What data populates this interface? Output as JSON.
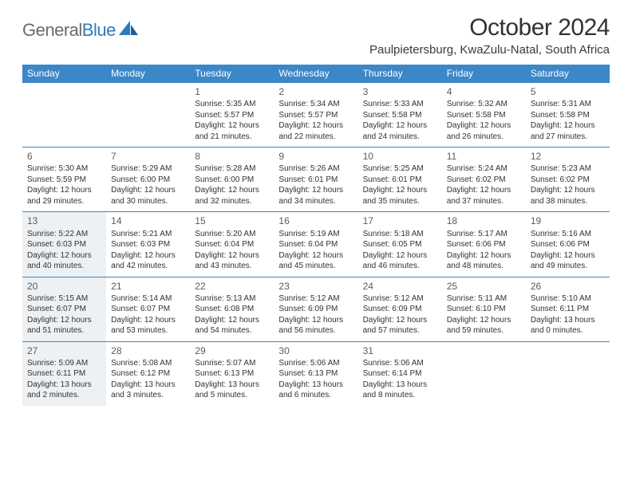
{
  "brand": {
    "name_gray": "General",
    "name_blue": "Blue"
  },
  "title": "October 2024",
  "location": "Paulpietersburg, KwaZulu-Natal, South Africa",
  "colors": {
    "header_bg": "#3b87c8",
    "header_fg": "#ffffff",
    "rule": "#3b87c8",
    "shade_bg": "#eef1f3",
    "text": "#323232",
    "logo_gray": "#6b6b6b",
    "logo_blue": "#2f7bbf"
  },
  "typography": {
    "title_fontsize_pt": 22,
    "location_fontsize_pt": 11,
    "dow_fontsize_pt": 9,
    "daynum_fontsize_pt": 9,
    "info_fontsize_pt": 7.5
  },
  "days_of_week": [
    "Sunday",
    "Monday",
    "Tuesday",
    "Wednesday",
    "Thursday",
    "Friday",
    "Saturday"
  ],
  "weeks": [
    [
      null,
      null,
      {
        "n": "1",
        "sr": "5:35 AM",
        "ss": "5:57 PM",
        "dl": "12 hours and 21 minutes."
      },
      {
        "n": "2",
        "sr": "5:34 AM",
        "ss": "5:57 PM",
        "dl": "12 hours and 22 minutes."
      },
      {
        "n": "3",
        "sr": "5:33 AM",
        "ss": "5:58 PM",
        "dl": "12 hours and 24 minutes."
      },
      {
        "n": "4",
        "sr": "5:32 AM",
        "ss": "5:58 PM",
        "dl": "12 hours and 26 minutes."
      },
      {
        "n": "5",
        "sr": "5:31 AM",
        "ss": "5:58 PM",
        "dl": "12 hours and 27 minutes."
      }
    ],
    [
      {
        "n": "6",
        "sr": "5:30 AM",
        "ss": "5:59 PM",
        "dl": "12 hours and 29 minutes."
      },
      {
        "n": "7",
        "sr": "5:29 AM",
        "ss": "6:00 PM",
        "dl": "12 hours and 30 minutes."
      },
      {
        "n": "8",
        "sr": "5:28 AM",
        "ss": "6:00 PM",
        "dl": "12 hours and 32 minutes."
      },
      {
        "n": "9",
        "sr": "5:26 AM",
        "ss": "6:01 PM",
        "dl": "12 hours and 34 minutes."
      },
      {
        "n": "10",
        "sr": "5:25 AM",
        "ss": "6:01 PM",
        "dl": "12 hours and 35 minutes."
      },
      {
        "n": "11",
        "sr": "5:24 AM",
        "ss": "6:02 PM",
        "dl": "12 hours and 37 minutes."
      },
      {
        "n": "12",
        "sr": "5:23 AM",
        "ss": "6:02 PM",
        "dl": "12 hours and 38 minutes."
      }
    ],
    [
      {
        "n": "13",
        "sr": "5:22 AM",
        "ss": "6:03 PM",
        "dl": "12 hours and 40 minutes.",
        "shade": true
      },
      {
        "n": "14",
        "sr": "5:21 AM",
        "ss": "6:03 PM",
        "dl": "12 hours and 42 minutes."
      },
      {
        "n": "15",
        "sr": "5:20 AM",
        "ss": "6:04 PM",
        "dl": "12 hours and 43 minutes."
      },
      {
        "n": "16",
        "sr": "5:19 AM",
        "ss": "6:04 PM",
        "dl": "12 hours and 45 minutes."
      },
      {
        "n": "17",
        "sr": "5:18 AM",
        "ss": "6:05 PM",
        "dl": "12 hours and 46 minutes."
      },
      {
        "n": "18",
        "sr": "5:17 AM",
        "ss": "6:06 PM",
        "dl": "12 hours and 48 minutes."
      },
      {
        "n": "19",
        "sr": "5:16 AM",
        "ss": "6:06 PM",
        "dl": "12 hours and 49 minutes."
      }
    ],
    [
      {
        "n": "20",
        "sr": "5:15 AM",
        "ss": "6:07 PM",
        "dl": "12 hours and 51 minutes.",
        "shade": true
      },
      {
        "n": "21",
        "sr": "5:14 AM",
        "ss": "6:07 PM",
        "dl": "12 hours and 53 minutes."
      },
      {
        "n": "22",
        "sr": "5:13 AM",
        "ss": "6:08 PM",
        "dl": "12 hours and 54 minutes."
      },
      {
        "n": "23",
        "sr": "5:12 AM",
        "ss": "6:09 PM",
        "dl": "12 hours and 56 minutes."
      },
      {
        "n": "24",
        "sr": "5:12 AM",
        "ss": "6:09 PM",
        "dl": "12 hours and 57 minutes."
      },
      {
        "n": "25",
        "sr": "5:11 AM",
        "ss": "6:10 PM",
        "dl": "12 hours and 59 minutes."
      },
      {
        "n": "26",
        "sr": "5:10 AM",
        "ss": "6:11 PM",
        "dl": "13 hours and 0 minutes."
      }
    ],
    [
      {
        "n": "27",
        "sr": "5:09 AM",
        "ss": "6:11 PM",
        "dl": "13 hours and 2 minutes.",
        "shade": true
      },
      {
        "n": "28",
        "sr": "5:08 AM",
        "ss": "6:12 PM",
        "dl": "13 hours and 3 minutes."
      },
      {
        "n": "29",
        "sr": "5:07 AM",
        "ss": "6:13 PM",
        "dl": "13 hours and 5 minutes."
      },
      {
        "n": "30",
        "sr": "5:06 AM",
        "ss": "6:13 PM",
        "dl": "13 hours and 6 minutes."
      },
      {
        "n": "31",
        "sr": "5:06 AM",
        "ss": "6:14 PM",
        "dl": "13 hours and 8 minutes."
      },
      null,
      null
    ]
  ],
  "labels": {
    "sunrise": "Sunrise:",
    "sunset": "Sunset:",
    "daylight": "Daylight:"
  }
}
